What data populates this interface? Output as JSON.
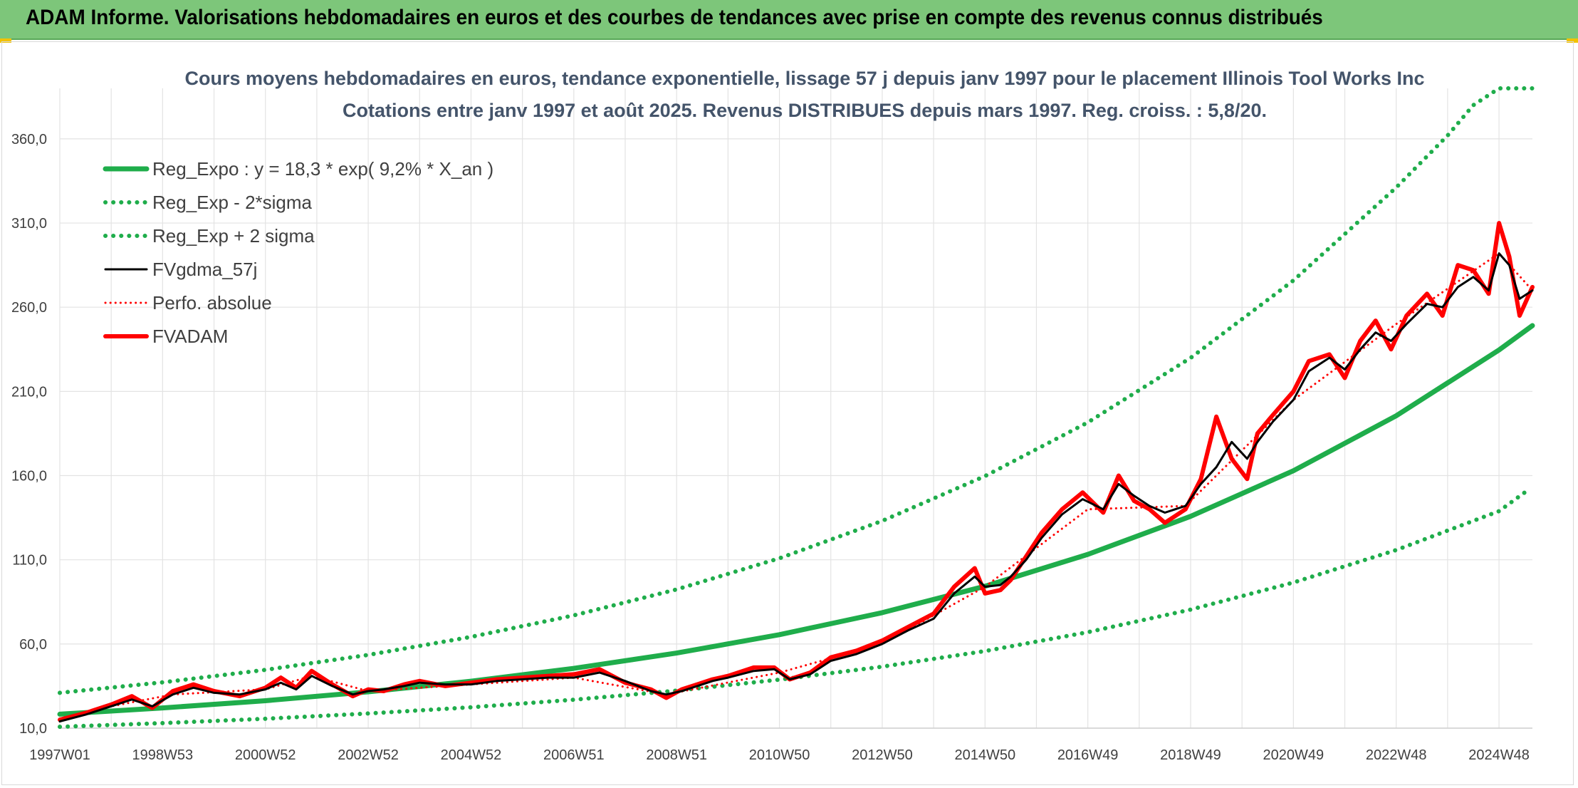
{
  "header": {
    "title": "ADAM Informe. Valorisations hebdomadaires en euros et des courbes de tendances avec prise en compte des revenus connus distribués"
  },
  "chart_data": {
    "type": "line",
    "title": "Cours moyens hebdomadaires en euros, tendance exponentielle, lissage 57 j depuis janv 1997 pour le placement Illinois Tool Works Inc",
    "subtitle": "Cotations entre janv 1997 et août 2025. Revenus DISTRIBUES depuis mars 1997. Reg. croiss. : 5,8/20.",
    "xlabel": "",
    "ylabel": "",
    "xlim": [
      1997.0,
      2025.65
    ],
    "ylim": [
      10,
      390
    ],
    "y_ticks": [
      "10,0",
      "60,0",
      "110,0",
      "160,0",
      "210,0",
      "260,0",
      "310,0",
      "360,0"
    ],
    "y_tick_values": [
      10,
      60,
      110,
      160,
      210,
      260,
      310,
      360
    ],
    "x_ticks": [
      "1997W01",
      "1998W53",
      "2000W52",
      "2002W52",
      "2004W52",
      "2006W51",
      "2008W51",
      "2010W50",
      "2012W50",
      "2014W50",
      "2016W49",
      "2018W49",
      "2020W49",
      "2022W48",
      "2024W48"
    ],
    "x_tick_positions": [
      1997.0,
      1999.0,
      2001.0,
      2003.0,
      2005.0,
      2007.0,
      2009.0,
      2011.0,
      2013.0,
      2015.0,
      2017.0,
      2019.0,
      2021.0,
      2023.0,
      2025.0
    ],
    "grid": true,
    "legend_position": "top-left",
    "series": [
      {
        "name": "Reg_Expo : y = 18,3 * exp( 9,2% *  X_an )",
        "color": "#1fad4b",
        "style": "solid",
        "x": [
          1997,
          1999,
          2001,
          2003,
          2005,
          2007,
          2009,
          2011,
          2013,
          2015,
          2017,
          2019,
          2021,
          2023,
          2025,
          2025.65
        ],
        "values": [
          18.3,
          22.0,
          26.3,
          31.6,
          37.9,
          45.5,
          54.6,
          65.5,
          78.6,
          94.3,
          113.2,
          135.8,
          162.9,
          195.5,
          234.6,
          249.1
        ]
      },
      {
        "name": "Reg_Exp - 2*sigma",
        "color": "#1fad4b",
        "style": "dotted",
        "x": [
          1997,
          1999,
          2001,
          2003,
          2005,
          2007,
          2009,
          2011,
          2013,
          2015,
          2017,
          2019,
          2021,
          2023,
          2025,
          2025.5
        ],
        "values": [
          10.8,
          13.0,
          15.6,
          18.7,
          22.4,
          26.9,
          32.3,
          38.8,
          46.5,
          55.8,
          67.0,
          80.4,
          96.5,
          115.8,
          138.9,
          150.0
        ]
      },
      {
        "name": "Reg_Exp + 2 sigma",
        "color": "#1fad4b",
        "style": "dotted",
        "x": [
          1997,
          1999,
          2001,
          2003,
          2005,
          2007,
          2009,
          2011,
          2013,
          2015,
          2017,
          2019,
          2021,
          2023,
          2024.0,
          2024.5,
          2025.0,
          2025.65
        ],
        "values": [
          31.0,
          37.2,
          44.6,
          53.5,
          64.2,
          77.0,
          92.4,
          110.9,
          133.1,
          159.7,
          191.6,
          229.9,
          275.9,
          331.1,
          362.0,
          380.0,
          390.0,
          390.0
        ]
      },
      {
        "name": "FVgdma_57j",
        "color": "#000000",
        "style": "solid",
        "x": [
          1997.0,
          1997.5,
          1998.0,
          1998.4,
          1998.8,
          1999.2,
          1999.6,
          2000.0,
          2000.5,
          2001.0,
          2001.3,
          2001.6,
          2001.9,
          2002.3,
          2002.7,
          2003.0,
          2003.3,
          2003.7,
          2004.0,
          2004.5,
          2005.0,
          2005.5,
          2006.0,
          2006.5,
          2007.0,
          2007.5,
          2008.0,
          2008.5,
          2008.8,
          2009.1,
          2009.4,
          2009.7,
          2010.0,
          2010.5,
          2010.9,
          2011.2,
          2011.6,
          2012.0,
          2012.5,
          2013.0,
          2013.5,
          2014.0,
          2014.4,
          2014.8,
          2015.0,
          2015.3,
          2015.5,
          2015.8,
          2016.1,
          2016.5,
          2016.9,
          2017.3,
          2017.6,
          2017.9,
          2018.2,
          2018.5,
          2018.9,
          2019.2,
          2019.5,
          2019.8,
          2020.1,
          2020.3,
          2020.6,
          2021.0,
          2021.3,
          2021.7,
          2022.0,
          2022.3,
          2022.6,
          2022.9,
          2023.2,
          2023.6,
          2023.9,
          2024.2,
          2024.5,
          2024.8,
          2025.0,
          2025.2,
          2025.4,
          2025.65
        ],
        "values": [
          14,
          18,
          23,
          27,
          23,
          30,
          34,
          31,
          30,
          33,
          37,
          33,
          41,
          35,
          30,
          32,
          33,
          35,
          37,
          36,
          36,
          38,
          39,
          40,
          40,
          43,
          38,
          32,
          30,
          32,
          35,
          38,
          40,
          44,
          45,
          39,
          42,
          50,
          54,
          60,
          68,
          75,
          90,
          100,
          94,
          95,
          100,
          110,
          123,
          137,
          146,
          140,
          155,
          148,
          142,
          138,
          142,
          155,
          165,
          180,
          170,
          180,
          192,
          205,
          222,
          230,
          223,
          235,
          245,
          240,
          250,
          262,
          260,
          272,
          278,
          270,
          292,
          285,
          265,
          270
        ]
      },
      {
        "name": "Perfo. absolue",
        "color": "#ff0000",
        "style": "dotted",
        "x": [
          1997.0,
          1998.0,
          1999.2,
          2001.0,
          2001.9,
          2003.0,
          2005.0,
          2007.0,
          2008.8,
          2011.0,
          2013.0,
          2015.0,
          2017.0,
          2018.9,
          2021.0,
          2023.0,
          2025.0,
          2025.65
        ],
        "values": [
          14,
          23,
          30,
          33,
          41,
          32,
          36,
          40,
          30,
          43,
          60,
          94,
          140,
          142,
          205,
          250,
          292,
          270
        ]
      },
      {
        "name": "FVADAM",
        "color": "#ff0000",
        "style": "solid",
        "x": [
          1997.0,
          1997.5,
          1998.0,
          1998.4,
          1998.8,
          1999.2,
          1999.6,
          2000.0,
          2000.5,
          2001.0,
          2001.3,
          2001.6,
          2001.9,
          2002.3,
          2002.7,
          2003.0,
          2003.3,
          2003.7,
          2004.0,
          2004.5,
          2005.0,
          2005.5,
          2006.0,
          2006.5,
          2007.0,
          2007.5,
          2008.0,
          2008.5,
          2008.8,
          2009.1,
          2009.4,
          2009.7,
          2010.0,
          2010.5,
          2010.9,
          2011.2,
          2011.6,
          2012.0,
          2012.5,
          2013.0,
          2013.5,
          2014.0,
          2014.4,
          2014.8,
          2015.0,
          2015.3,
          2015.5,
          2015.8,
          2016.1,
          2016.5,
          2016.9,
          2017.3,
          2017.6,
          2017.9,
          2018.2,
          2018.5,
          2018.9,
          2019.2,
          2019.5,
          2019.8,
          2020.1,
          2020.3,
          2020.6,
          2021.0,
          2021.3,
          2021.7,
          2022.0,
          2022.3,
          2022.6,
          2022.9,
          2023.2,
          2023.6,
          2023.9,
          2024.2,
          2024.5,
          2024.8,
          2025.0,
          2025.2,
          2025.4,
          2025.65
        ],
        "values": [
          15,
          19,
          24,
          29,
          22,
          32,
          36,
          32,
          29,
          34,
          40,
          34,
          44,
          36,
          29,
          33,
          32,
          36,
          38,
          35,
          37,
          39,
          40,
          41,
          42,
          45,
          37,
          33,
          28,
          33,
          36,
          39,
          41,
          46,
          46,
          39,
          43,
          52,
          56,
          62,
          70,
          78,
          94,
          105,
          90,
          92,
          98,
          112,
          126,
          140,
          150,
          138,
          160,
          145,
          140,
          132,
          140,
          158,
          195,
          170,
          158,
          185,
          196,
          210,
          228,
          232,
          218,
          240,
          252,
          235,
          255,
          268,
          255,
          285,
          282,
          268,
          310,
          290,
          255,
          272
        ]
      }
    ]
  }
}
